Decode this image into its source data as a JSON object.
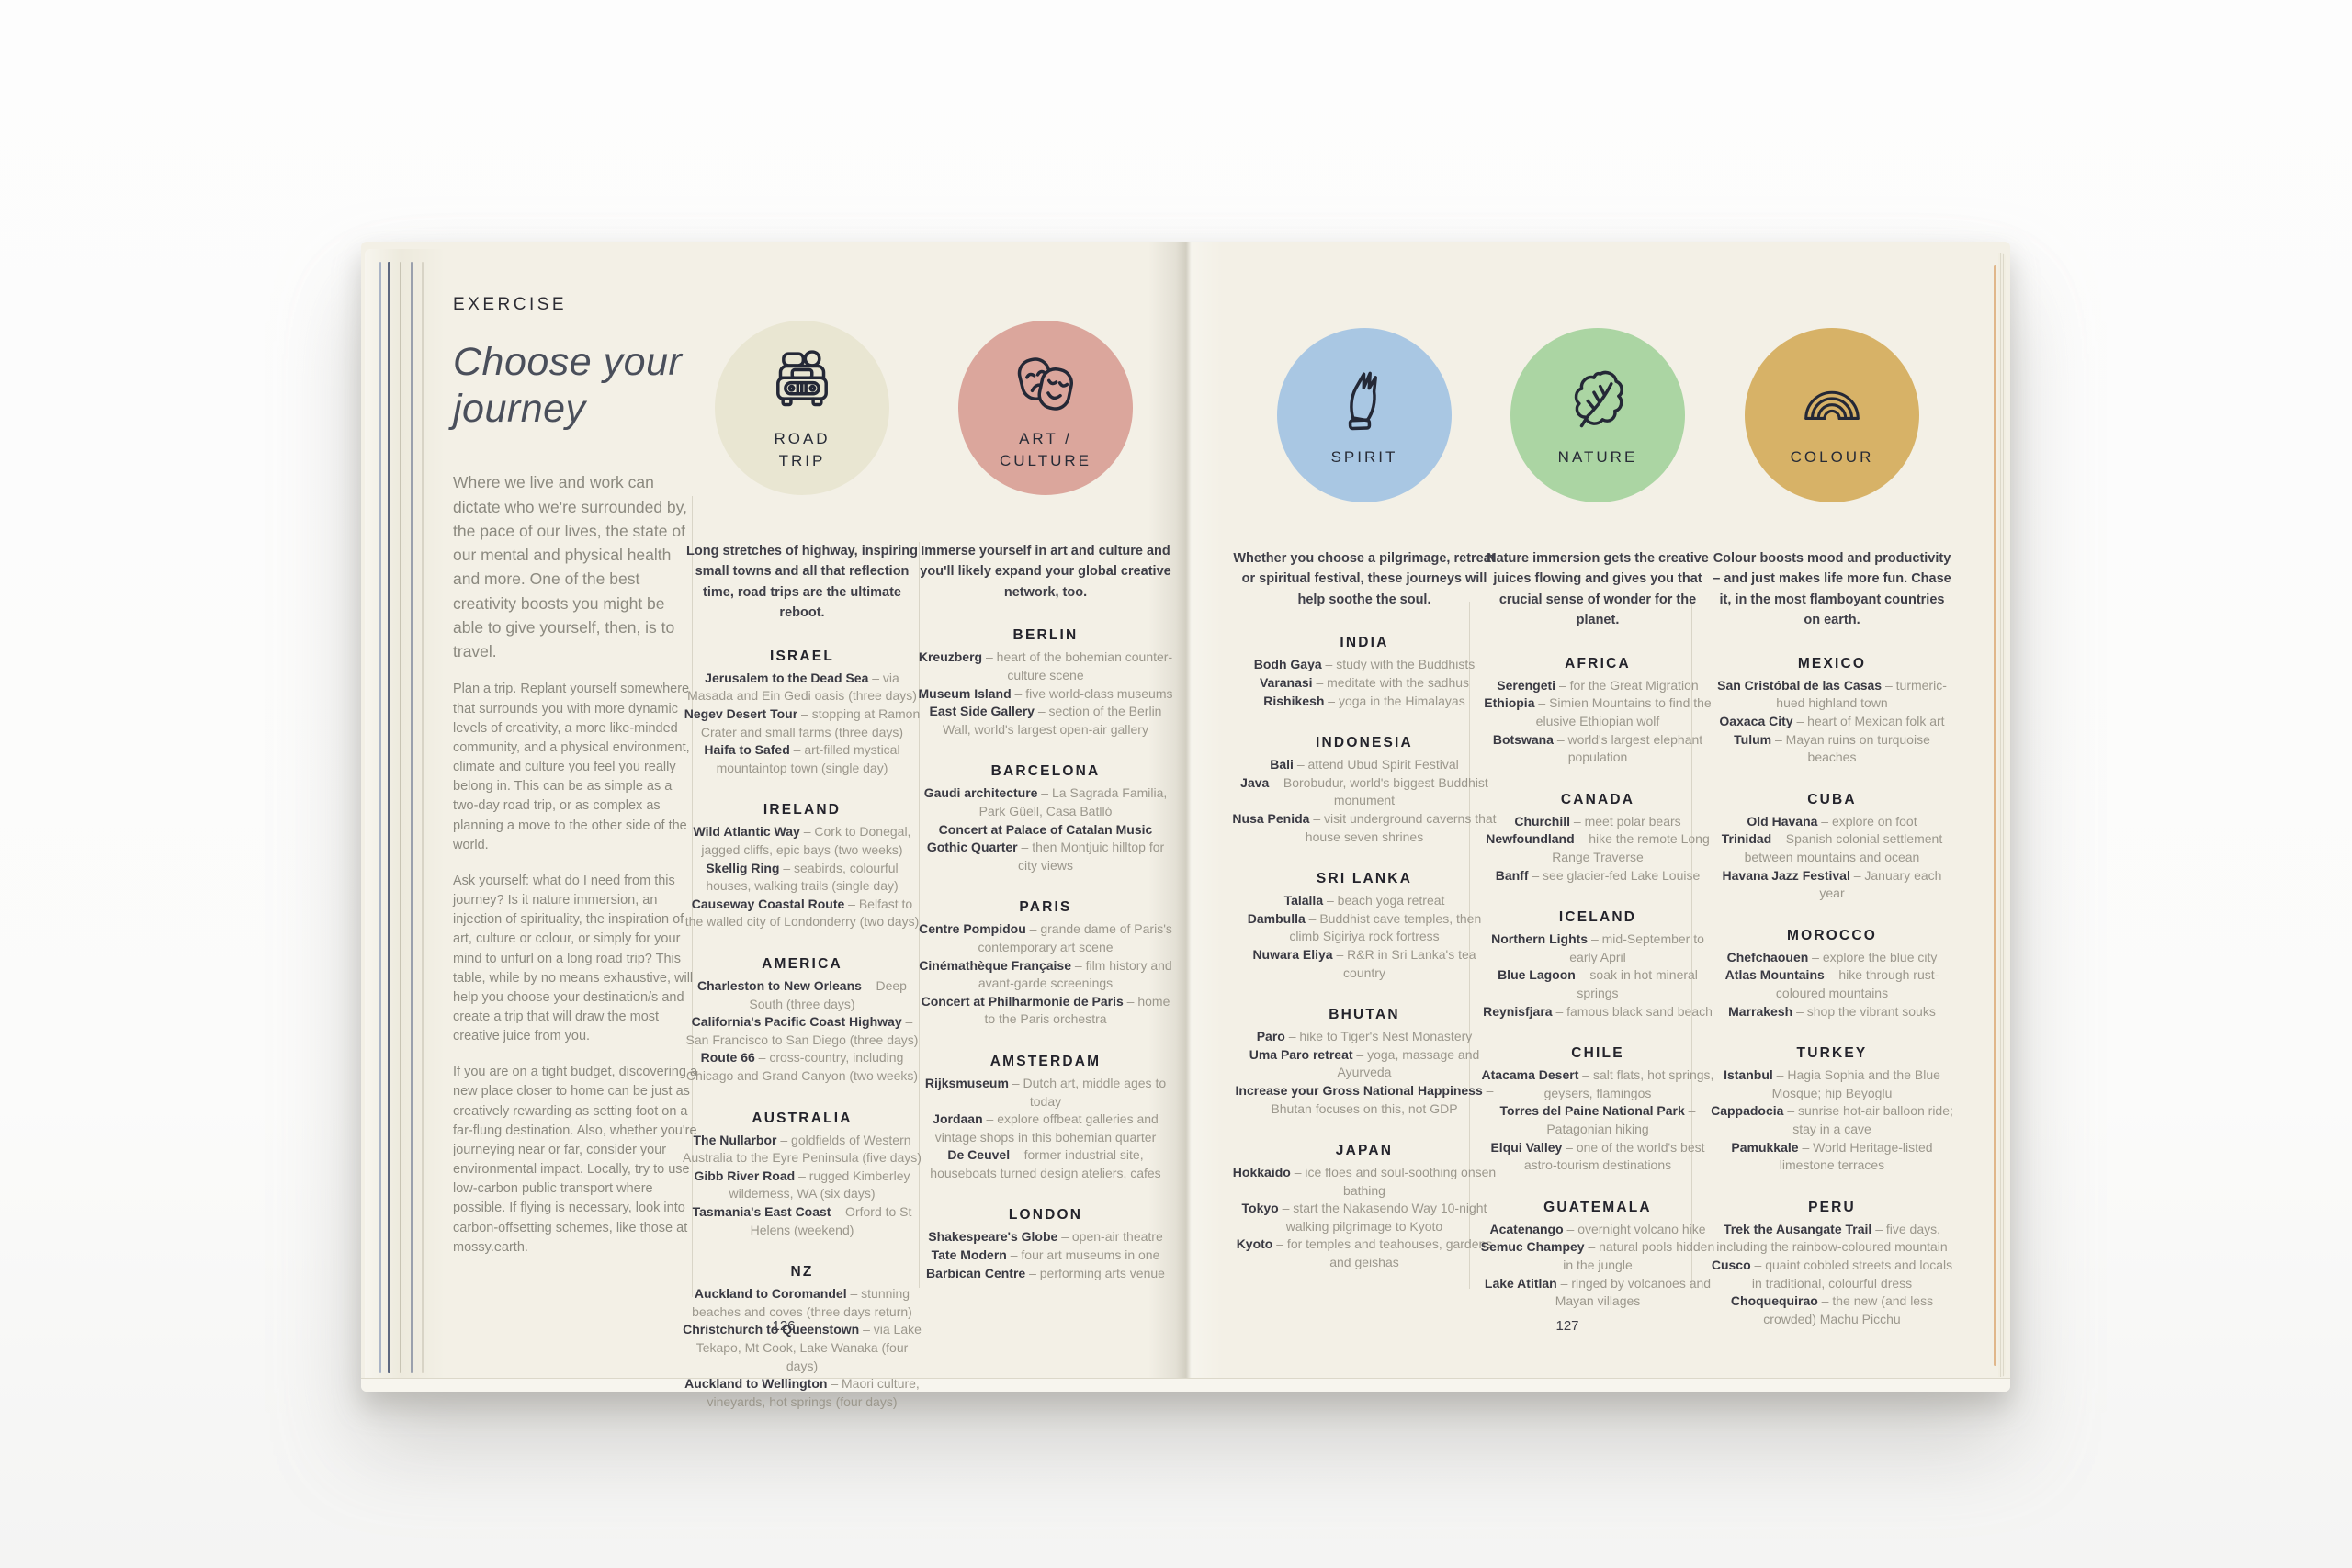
{
  "palette": {
    "paper": "#f3f0e6",
    "icon_stroke": "#242836",
    "divider": "#d9d5c7",
    "cover_edge_accent": "#d0893f"
  },
  "entry_separator": "–",
  "left_page": {
    "eyebrow": "EXERCISE",
    "title_line1": "Choose your",
    "title_line2": "journey",
    "intro_paragraphs": [
      "Where we live and work can dictate who we're surrounded by, the pace of our lives, the state of our mental and physical health and more. One of the best creativity boosts you might be able to give yourself, then, is to travel.",
      "Plan a trip. Replant yourself somewhere that surrounds you with more dynamic levels of creativity, a more like-minded community, and a physical environment, climate and culture you feel you really belong in. This can be as simple as a two-day road trip, or as complex as planning a move to the other side of the world.",
      "Ask yourself: what do I need from this journey? Is it nature immersion, an injection of spirituality, the inspiration of art, culture or colour, or simply for your mind to unfurl on a long road trip? This table, while by no means exhaustive, will help you choose your destination/s and create a trip that will draw the most creative juice from you.",
      "If you are on a tight budget, discovering a new place closer to home can be just as creatively rewarding as setting foot on a far-flung destination. Also, whether you're journeying near or far, consider your environmental impact. Locally, try to use low-carbon public transport where possible. If flying is necessary, look into carbon-offsetting schemes, like those at mossy.earth.",
      ""
    ],
    "page_number": "126"
  },
  "right_page": {
    "page_number": "127"
  },
  "columns": [
    {
      "id": "road-trip",
      "icon": "car-icon",
      "circle_color": "#e9e6d2",
      "label_lines": [
        "ROAD",
        "TRIP"
      ],
      "intro": "Long stretches of highway, inspiring small towns and all that reflection time, road trips are the ultimate reboot.",
      "sections": [
        {
          "heading": "ISRAEL",
          "entries": [
            {
              "name": "Jerusalem to the Dead Sea",
              "desc": "via Masada and Ein Gedi oasis (three days)"
            },
            {
              "name": "Negev Desert Tour",
              "desc": "stopping at Ramon Crater and small farms (three days)"
            },
            {
              "name": "Haifa to Safed",
              "desc": "art-filled mystical mountaintop town (single day)"
            }
          ]
        },
        {
          "heading": "IRELAND",
          "entries": [
            {
              "name": "Wild Atlantic Way",
              "desc": "Cork to Donegal, jagged cliffs, epic bays (two weeks)"
            },
            {
              "name": "Skellig Ring",
              "desc": "seabirds, colourful houses, walking trails (single day)"
            },
            {
              "name": "Causeway Coastal Route",
              "desc": "Belfast to the walled city of Londonderry (two days)"
            }
          ]
        },
        {
          "heading": "AMERICA",
          "entries": [
            {
              "name": "Charleston to New Orleans",
              "desc": "Deep South (three days)"
            },
            {
              "name": "California's Pacific Coast Highway",
              "desc": "San Francisco to San Diego (three days)"
            },
            {
              "name": "Route 66",
              "desc": "cross-country, including Chicago and Grand Canyon (two weeks)"
            }
          ]
        },
        {
          "heading": "AUSTRALIA",
          "entries": [
            {
              "name": "The Nullarbor",
              "desc": "goldfields of Western Australia to the Eyre Peninsula (five days)"
            },
            {
              "name": "Gibb River Road",
              "desc": "rugged Kimberley wilderness, WA (six days)"
            },
            {
              "name": "Tasmania's East Coast",
              "desc": "Orford to St Helens (weekend)"
            }
          ]
        },
        {
          "heading": "NZ",
          "entries": [
            {
              "name": "Auckland to Coromandel",
              "desc": "stunning beaches and coves (three days return)"
            },
            {
              "name": "Christchurch to Queenstown",
              "desc": "via Lake Tekapo, Mt Cook, Lake Wanaka (four days)"
            },
            {
              "name": "Auckland to Wellington",
              "desc": "Maori culture, vineyards, hot springs (four days)"
            }
          ]
        }
      ]
    },
    {
      "id": "art-culture",
      "icon": "theatre-masks-icon",
      "circle_color": "#dba69c",
      "label_lines": [
        "ART /",
        "CULTURE"
      ],
      "intro": "Immerse yourself in art and culture and you'll likely expand your global creative network, too.",
      "sections": [
        {
          "heading": "BERLIN",
          "entries": [
            {
              "name": "Kreuzberg",
              "desc": "heart of the bohemian counter-culture scene"
            },
            {
              "name": "Museum Island",
              "desc": "five world-class museums"
            },
            {
              "name": "East Side Gallery",
              "desc": "section of the Berlin Wall, world's largest open-air gallery"
            }
          ]
        },
        {
          "heading": "BARCELONA",
          "entries": [
            {
              "name": "Gaudi architecture",
              "desc": "La Sagrada Familia, Park Güell, Casa Batlló"
            },
            {
              "name": "Concert at Palace of Catalan Music",
              "desc": ""
            },
            {
              "name": "Gothic Quarter",
              "desc": "then Montjuic hilltop for city views"
            }
          ]
        },
        {
          "heading": "PARIS",
          "entries": [
            {
              "name": "Centre Pompidou",
              "desc": "grande dame of Paris's contemporary art scene"
            },
            {
              "name": "Cinémathèque Française",
              "desc": "film history and avant-garde screenings"
            },
            {
              "name": "Concert at Philharmonie de Paris",
              "desc": "home to the Paris orchestra"
            }
          ]
        },
        {
          "heading": "AMSTERDAM",
          "entries": [
            {
              "name": "Rijksmuseum",
              "desc": "Dutch art, middle ages to today"
            },
            {
              "name": "Jordaan",
              "desc": "explore offbeat galleries and vintage shops in this bohemian quarter"
            },
            {
              "name": "De Ceuvel",
              "desc": "former industrial site, houseboats turned design ateliers, cafes"
            }
          ]
        },
        {
          "heading": "LONDON",
          "entries": [
            {
              "name": "Shakespeare's Globe",
              "desc": "open-air theatre"
            },
            {
              "name": "Tate Modern",
              "desc": "four art museums in one"
            },
            {
              "name": "Barbican Centre",
              "desc": "performing arts venue"
            }
          ]
        }
      ]
    },
    {
      "id": "spirit",
      "icon": "praying-hands-icon",
      "circle_color": "#a9c7e3",
      "label_lines": [
        "SPIRIT"
      ],
      "intro": "Whether you choose a pilgrimage, retreat or spiritual festival, these journeys will help soothe the soul.",
      "sections": [
        {
          "heading": "INDIA",
          "entries": [
            {
              "name": "Bodh Gaya",
              "desc": "study with the Buddhists"
            },
            {
              "name": "Varanasi",
              "desc": "meditate with the sadhus"
            },
            {
              "name": "Rishikesh",
              "desc": "yoga in the Himalayas"
            }
          ]
        },
        {
          "heading": "INDONESIA",
          "entries": [
            {
              "name": "Bali",
              "desc": "attend Ubud Spirit Festival"
            },
            {
              "name": "Java",
              "desc": "Borobudur, world's biggest Buddhist monument"
            },
            {
              "name": "Nusa Penida",
              "desc": "visit underground caverns that house seven shrines"
            }
          ]
        },
        {
          "heading": "SRI LANKA",
          "entries": [
            {
              "name": "Talalla",
              "desc": "beach yoga retreat"
            },
            {
              "name": "Dambulla",
              "desc": "Buddhist cave temples, then climb Sigiriya rock fortress"
            },
            {
              "name": "Nuwara Eliya",
              "desc": "R&R in Sri Lanka's tea country"
            }
          ]
        },
        {
          "heading": "BHUTAN",
          "entries": [
            {
              "name": "Paro",
              "desc": "hike to Tiger's Nest Monastery"
            },
            {
              "name": "Uma Paro retreat",
              "desc": "yoga, massage and Ayurveda"
            },
            {
              "name": "Increase your Gross National Happiness",
              "desc": "Bhutan focuses on this, not GDP"
            }
          ]
        },
        {
          "heading": "JAPAN",
          "entries": [
            {
              "name": "Hokkaido",
              "desc": "ice floes and soul-soothing onsen bathing"
            },
            {
              "name": "Tokyo",
              "desc": "start the Nakasendo Way 10-night walking pilgrimage to Kyoto"
            },
            {
              "name": "Kyoto",
              "desc": "for temples and teahouses, gardens and geishas"
            }
          ]
        }
      ]
    },
    {
      "id": "nature",
      "icon": "leaf-icon",
      "circle_color": "#abd5a3",
      "label_lines": [
        "NATURE"
      ],
      "intro": "Nature immersion gets the creative juices flowing and gives you that crucial sense of wonder for the planet.",
      "sections": [
        {
          "heading": "AFRICA",
          "entries": [
            {
              "name": "Serengeti",
              "desc": "for the Great Migration"
            },
            {
              "name": "Ethiopia",
              "desc": "Simien Mountains to find the elusive Ethiopian wolf"
            },
            {
              "name": "Botswana",
              "desc": "world's largest elephant population"
            }
          ]
        },
        {
          "heading": "CANADA",
          "entries": [
            {
              "name": "Churchill",
              "desc": "meet polar bears"
            },
            {
              "name": "Newfoundland",
              "desc": "hike the remote Long Range Traverse"
            },
            {
              "name": "Banff",
              "desc": "see glacier-fed Lake Louise"
            }
          ]
        },
        {
          "heading": "ICELAND",
          "entries": [
            {
              "name": "Northern Lights",
              "desc": "mid-September to early April"
            },
            {
              "name": "Blue Lagoon",
              "desc": "soak in hot mineral springs"
            },
            {
              "name": "Reynisfjara",
              "desc": "famous black sand beach"
            }
          ]
        },
        {
          "heading": "CHILE",
          "entries": [
            {
              "name": "Atacama Desert",
              "desc": "salt flats, hot springs, geysers, flamingos"
            },
            {
              "name": "Torres del Paine National Park",
              "desc": "Patagonian hiking"
            },
            {
              "name": "Elqui Valley",
              "desc": "one of the world's best astro-tourism destinations"
            }
          ]
        },
        {
          "heading": "GUATEMALA",
          "entries": [
            {
              "name": "Acatenango",
              "desc": "overnight volcano hike"
            },
            {
              "name": "Semuc Champey",
              "desc": "natural pools hidden in the jungle"
            },
            {
              "name": "Lake Atitlan",
              "desc": "ringed by volcanoes and Mayan villages"
            }
          ]
        }
      ]
    },
    {
      "id": "colour",
      "icon": "rainbow-icon",
      "circle_color": "#d7b267",
      "label_lines": [
        "COLOUR"
      ],
      "intro": "Colour boosts mood and productivity – and just makes life more fun. Chase it, in the most flamboyant countries on earth.",
      "sections": [
        {
          "heading": "MEXICO",
          "entries": [
            {
              "name": "San Cristóbal de las Casas",
              "desc": "turmeric-hued highland town"
            },
            {
              "name": "Oaxaca City",
              "desc": "heart of Mexican folk art"
            },
            {
              "name": "Tulum",
              "desc": "Mayan ruins on turquoise beaches"
            }
          ]
        },
        {
          "heading": "CUBA",
          "entries": [
            {
              "name": "Old Havana",
              "desc": "explore on foot"
            },
            {
              "name": "Trinidad",
              "desc": "Spanish colonial settlement between mountains and ocean"
            },
            {
              "name": "Havana Jazz Festival",
              "desc": "January each year"
            }
          ]
        },
        {
          "heading": "MOROCCO",
          "entries": [
            {
              "name": "Chefchaouen",
              "desc": "explore the blue city"
            },
            {
              "name": "Atlas Mountains",
              "desc": "hike through rust-coloured mountains"
            },
            {
              "name": "Marrakesh",
              "desc": "shop the vibrant souks"
            }
          ]
        },
        {
          "heading": "TURKEY",
          "entries": [
            {
              "name": "Istanbul",
              "desc": "Hagia Sophia and the Blue Mosque; hip Beyoglu"
            },
            {
              "name": "Cappadocia",
              "desc": "sunrise hot-air balloon ride; stay in a cave"
            },
            {
              "name": "Pamukkale",
              "desc": "World Heritage-listed limestone terraces"
            }
          ]
        },
        {
          "heading": "PERU",
          "entries": [
            {
              "name": "Trek the Ausangate Trail",
              "desc": "five days, including the rainbow-coloured mountain"
            },
            {
              "name": "Cusco",
              "desc": "quaint cobbled streets and locals in traditional, colourful dress"
            },
            {
              "name": "Choquequirao",
              "desc": "the new (and less crowded) Machu Picchu"
            }
          ]
        }
      ]
    }
  ]
}
